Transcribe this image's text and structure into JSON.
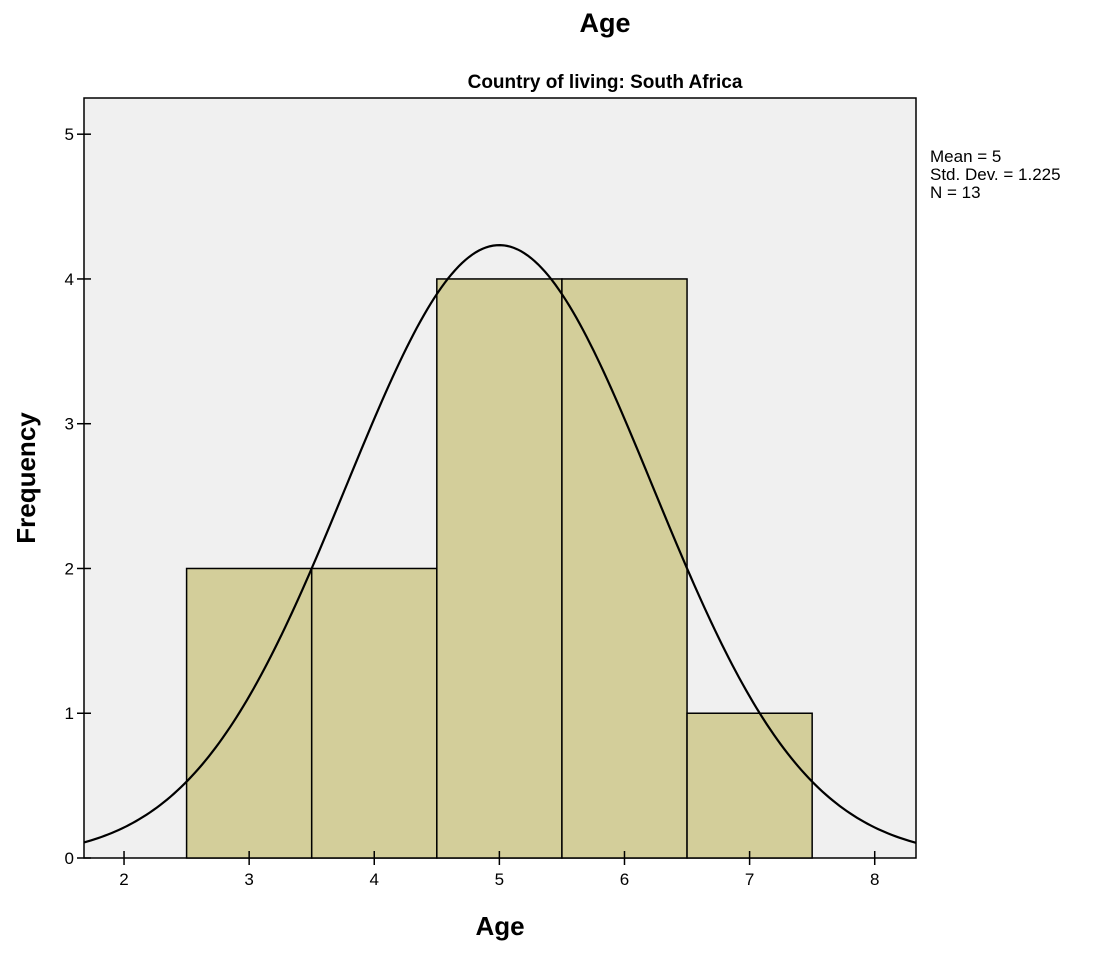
{
  "chart_data": {
    "type": "histogram",
    "title": "Age",
    "subtitle": "Country of living: South Africa",
    "xlabel": "Age",
    "ylabel": "Frequency",
    "xlim": [
      1.68,
      8.33
    ],
    "ylim": [
      0,
      5.25
    ],
    "xticks": [
      "2",
      "3",
      "4",
      "5",
      "6",
      "7",
      "8"
    ],
    "yticks": [
      "0",
      "1",
      "2",
      "3",
      "4",
      "5"
    ],
    "bins": [
      {
        "x0": 2.5,
        "x1": 3.5,
        "count": 2
      },
      {
        "x0": 3.5,
        "x1": 4.5,
        "count": 2
      },
      {
        "x0": 4.5,
        "x1": 5.5,
        "count": 4
      },
      {
        "x0": 5.5,
        "x1": 6.5,
        "count": 4
      },
      {
        "x0": 6.5,
        "x1": 7.5,
        "count": 1
      }
    ],
    "normal_curve": {
      "mean": 5,
      "std": 1.225,
      "n": 13,
      "bin_width": 1
    },
    "stats": [
      "Mean = 5",
      "Std. Dev. = 1.225",
      "N = 13"
    ],
    "colors": {
      "bar_fill": "#d3ce9a",
      "plot_bg": "#f0f0f0",
      "line": "#000000"
    },
    "grid": false,
    "legend": "none"
  }
}
